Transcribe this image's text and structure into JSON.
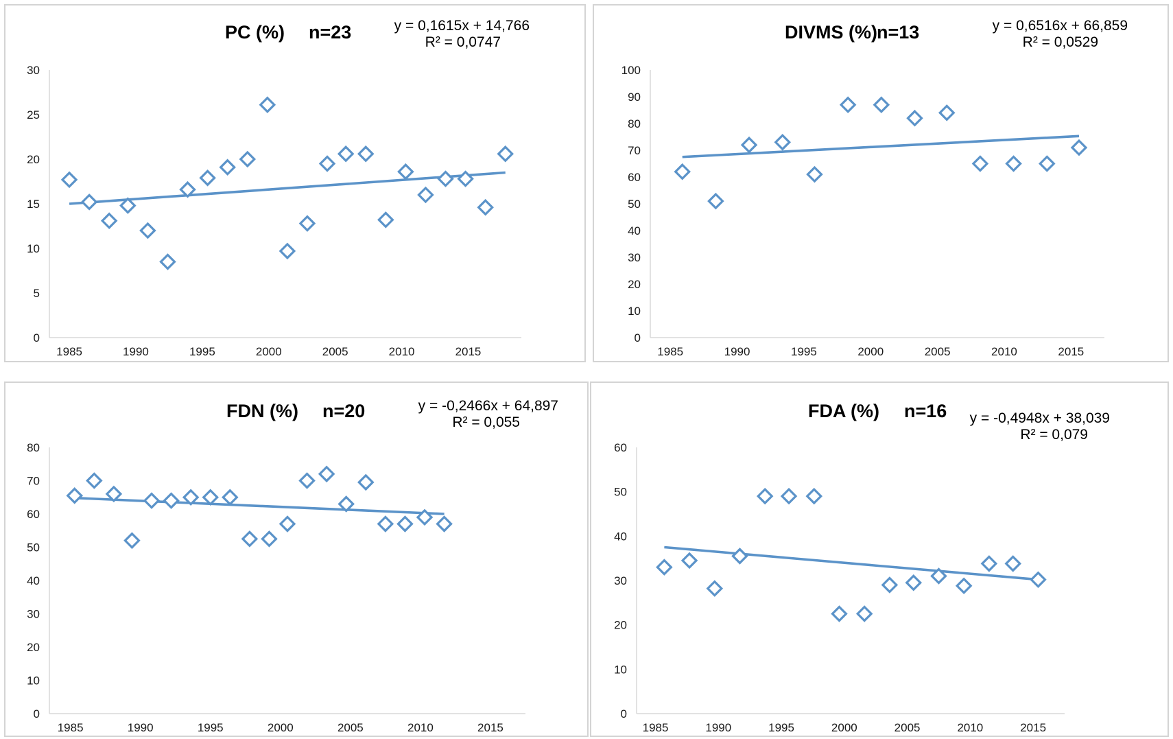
{
  "chart_data": [
    {
      "type": "scatter",
      "title": "PC (%)",
      "n_label": "n=23",
      "equation": "y = 0,1615x + 14,766",
      "r2": "R² = 0,0747",
      "ylim": [
        0,
        30
      ],
      "yticks": [
        "0",
        "5",
        "10",
        "15",
        "20",
        "25",
        "30"
      ],
      "xlim": [
        1983.5,
        2019
      ],
      "xticks": [
        "1985",
        "1990",
        "1995",
        "2000",
        "2005",
        "2010",
        "2015"
      ],
      "color": "#5b93c9",
      "points": {
        "x": [
          1985.0,
          1986.5,
          1988.0,
          1989.4,
          1990.9,
          1992.4,
          1993.9,
          1995.4,
          1996.9,
          1998.4,
          1999.9,
          2001.4,
          2002.9,
          2004.4,
          2005.8,
          2007.3,
          2008.8,
          2010.3,
          2011.8,
          2013.3,
          2014.8,
          2016.3,
          2017.8
        ],
        "y": [
          17.7,
          15.2,
          13.1,
          14.8,
          12.0,
          8.5,
          16.6,
          17.9,
          19.1,
          20.0,
          26.1,
          9.7,
          12.8,
          19.5,
          20.6,
          20.6,
          13.2,
          18.6,
          16.0,
          17.8,
          17.8,
          14.6,
          20.6
        ]
      },
      "trendline": {
        "x": [
          1985.0,
          2017.8
        ],
        "y": [
          15.0,
          18.5
        ]
      }
    },
    {
      "type": "scatter",
      "title": "DIVMS (%)",
      "n_label": "n=13",
      "equation": "y = 0,6516x + 66,859",
      "r2": "R² = 0,0529",
      "ylim": [
        0,
        100
      ],
      "yticks": [
        "0",
        "10",
        "20",
        "30",
        "40",
        "50",
        "60",
        "70",
        "80",
        "90",
        "100"
      ],
      "xlim": [
        1983.5,
        2017.5
      ],
      "xticks": [
        "1985",
        "1990",
        "1995",
        "2000",
        "2005",
        "2010",
        "2015"
      ],
      "color": "#5b93c9",
      "points": {
        "x": [
          1985.9,
          1988.4,
          1990.9,
          1993.4,
          1995.8,
          1998.3,
          2000.8,
          2003.3,
          2005.7,
          2008.2,
          2010.7,
          2013.2,
          2015.6
        ],
        "y": [
          62,
          51,
          72,
          73,
          61,
          87,
          87,
          82,
          84,
          65,
          65,
          65,
          71
        ]
      },
      "trendline": {
        "x": [
          1985.9,
          2015.6
        ],
        "y": [
          67.5,
          75.3
        ]
      }
    },
    {
      "type": "scatter",
      "title": "FDN (%)",
      "n_label": "n=20",
      "equation": "y = -0,2466x + 64,897",
      "r2": "R² = 0,055",
      "ylim": [
        0,
        80
      ],
      "yticks": [
        "0",
        "10",
        "20",
        "30",
        "40",
        "50",
        "60",
        "70",
        "80"
      ],
      "xlim": [
        1983.5,
        2017.5
      ],
      "xticks": [
        "1985",
        "1990",
        "1995",
        "2000",
        "2005",
        "2010",
        "2015"
      ],
      "color": "#5b93c9",
      "points": {
        "x": [
          1985.3,
          1986.7,
          1988.1,
          1989.4,
          1990.8,
          1992.2,
          1993.6,
          1995.0,
          1996.4,
          1997.8,
          1999.2,
          2000.5,
          2001.9,
          2003.3,
          2004.7,
          2006.1,
          2007.5,
          2008.9,
          2010.3,
          2011.7
        ],
        "y": [
          65.5,
          70,
          66,
          52,
          64,
          64,
          65,
          65,
          65,
          52.5,
          52.5,
          57,
          70,
          72,
          63,
          69.5,
          57,
          57,
          59,
          57
        ]
      },
      "trendline": {
        "x": [
          1985.3,
          2011.7
        ],
        "y": [
          64.8,
          60.0
        ]
      }
    },
    {
      "type": "scatter",
      "title": "FDA (%)",
      "n_label": "n=16",
      "equation": "y = -0,4948x + 38,039",
      "r2": "R² = 0,079",
      "ylim": [
        0,
        60
      ],
      "yticks": [
        "0",
        "10",
        "20",
        "30",
        "40",
        "50",
        "60"
      ],
      "xlim": [
        1983.5,
        2017.5
      ],
      "xticks": [
        "1985",
        "1990",
        "1995",
        "2000",
        "2005",
        "2010",
        "2015"
      ],
      "color": "#5b93c9",
      "points": {
        "x": [
          1985.7,
          1987.7,
          1989.7,
          1991.7,
          1993.7,
          1995.6,
          1997.6,
          1999.6,
          2001.6,
          2003.6,
          2005.5,
          2007.5,
          2009.5,
          2011.5,
          2013.4,
          2015.4
        ],
        "y": [
          33,
          34.5,
          28.2,
          35.5,
          49,
          49,
          49,
          22.5,
          22.5,
          29,
          29.5,
          31,
          28.8,
          33.8,
          33.8,
          30.2
        ]
      },
      "trendline": {
        "x": [
          1985.7,
          2015.4
        ],
        "y": [
          37.5,
          30.2
        ]
      }
    }
  ]
}
